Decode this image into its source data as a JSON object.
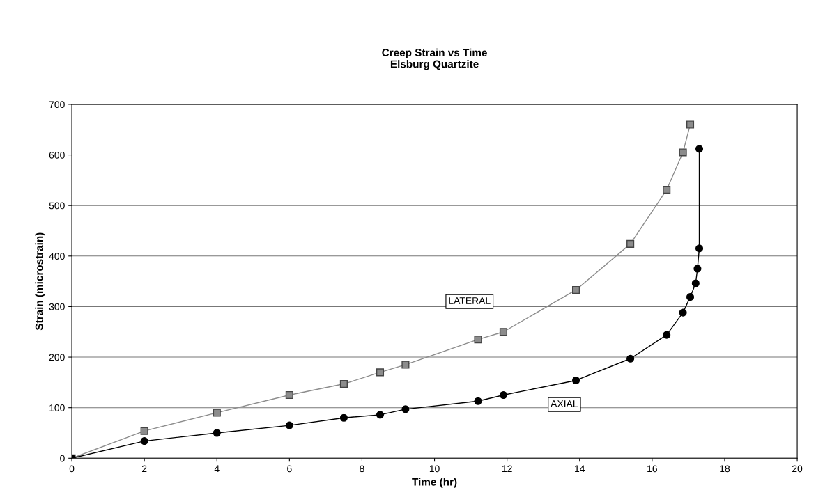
{
  "chart_data": {
    "type": "line",
    "title": "Creep Strain vs Time\nElsburg Quartzite",
    "xlabel": "Time (hr)",
    "ylabel": "Strain (microstrain)",
    "series": [
      {
        "name": "LATERAL",
        "color": "#8c8c8c",
        "marker": "square",
        "x": [
          0,
          2,
          4,
          6,
          7.5,
          8.5,
          9.2,
          11.2,
          11.9,
          13.9,
          15.4,
          16.4,
          16.85,
          17.05
        ],
        "values": [
          0,
          54,
          90,
          125,
          147,
          170,
          185,
          235,
          250,
          333,
          424,
          531,
          605,
          660
        ]
      },
      {
        "name": "AXIAL",
        "color": "#000000",
        "marker": "circle",
        "x": [
          0,
          2,
          4,
          6,
          7.5,
          8.5,
          9.2,
          11.2,
          11.9,
          13.9,
          15.4,
          16.4,
          16.85,
          17.05,
          17.2,
          17.25,
          17.3,
          17.3
        ],
        "values": [
          0,
          34,
          50,
          65,
          80,
          86,
          97,
          113,
          125,
          154,
          197,
          244,
          288,
          319,
          346,
          375,
          415,
          612
        ]
      }
    ],
    "xlim": [
      0,
      20
    ],
    "xticks": [
      0,
      2,
      4,
      6,
      8,
      10,
      12,
      14,
      16,
      18,
      20
    ],
    "ylim": [
      0,
      700
    ],
    "yticks": [
      0,
      100,
      200,
      300,
      400,
      500,
      600,
      700
    ],
    "grid": "y",
    "legend": false,
    "line_style": "solid"
  }
}
